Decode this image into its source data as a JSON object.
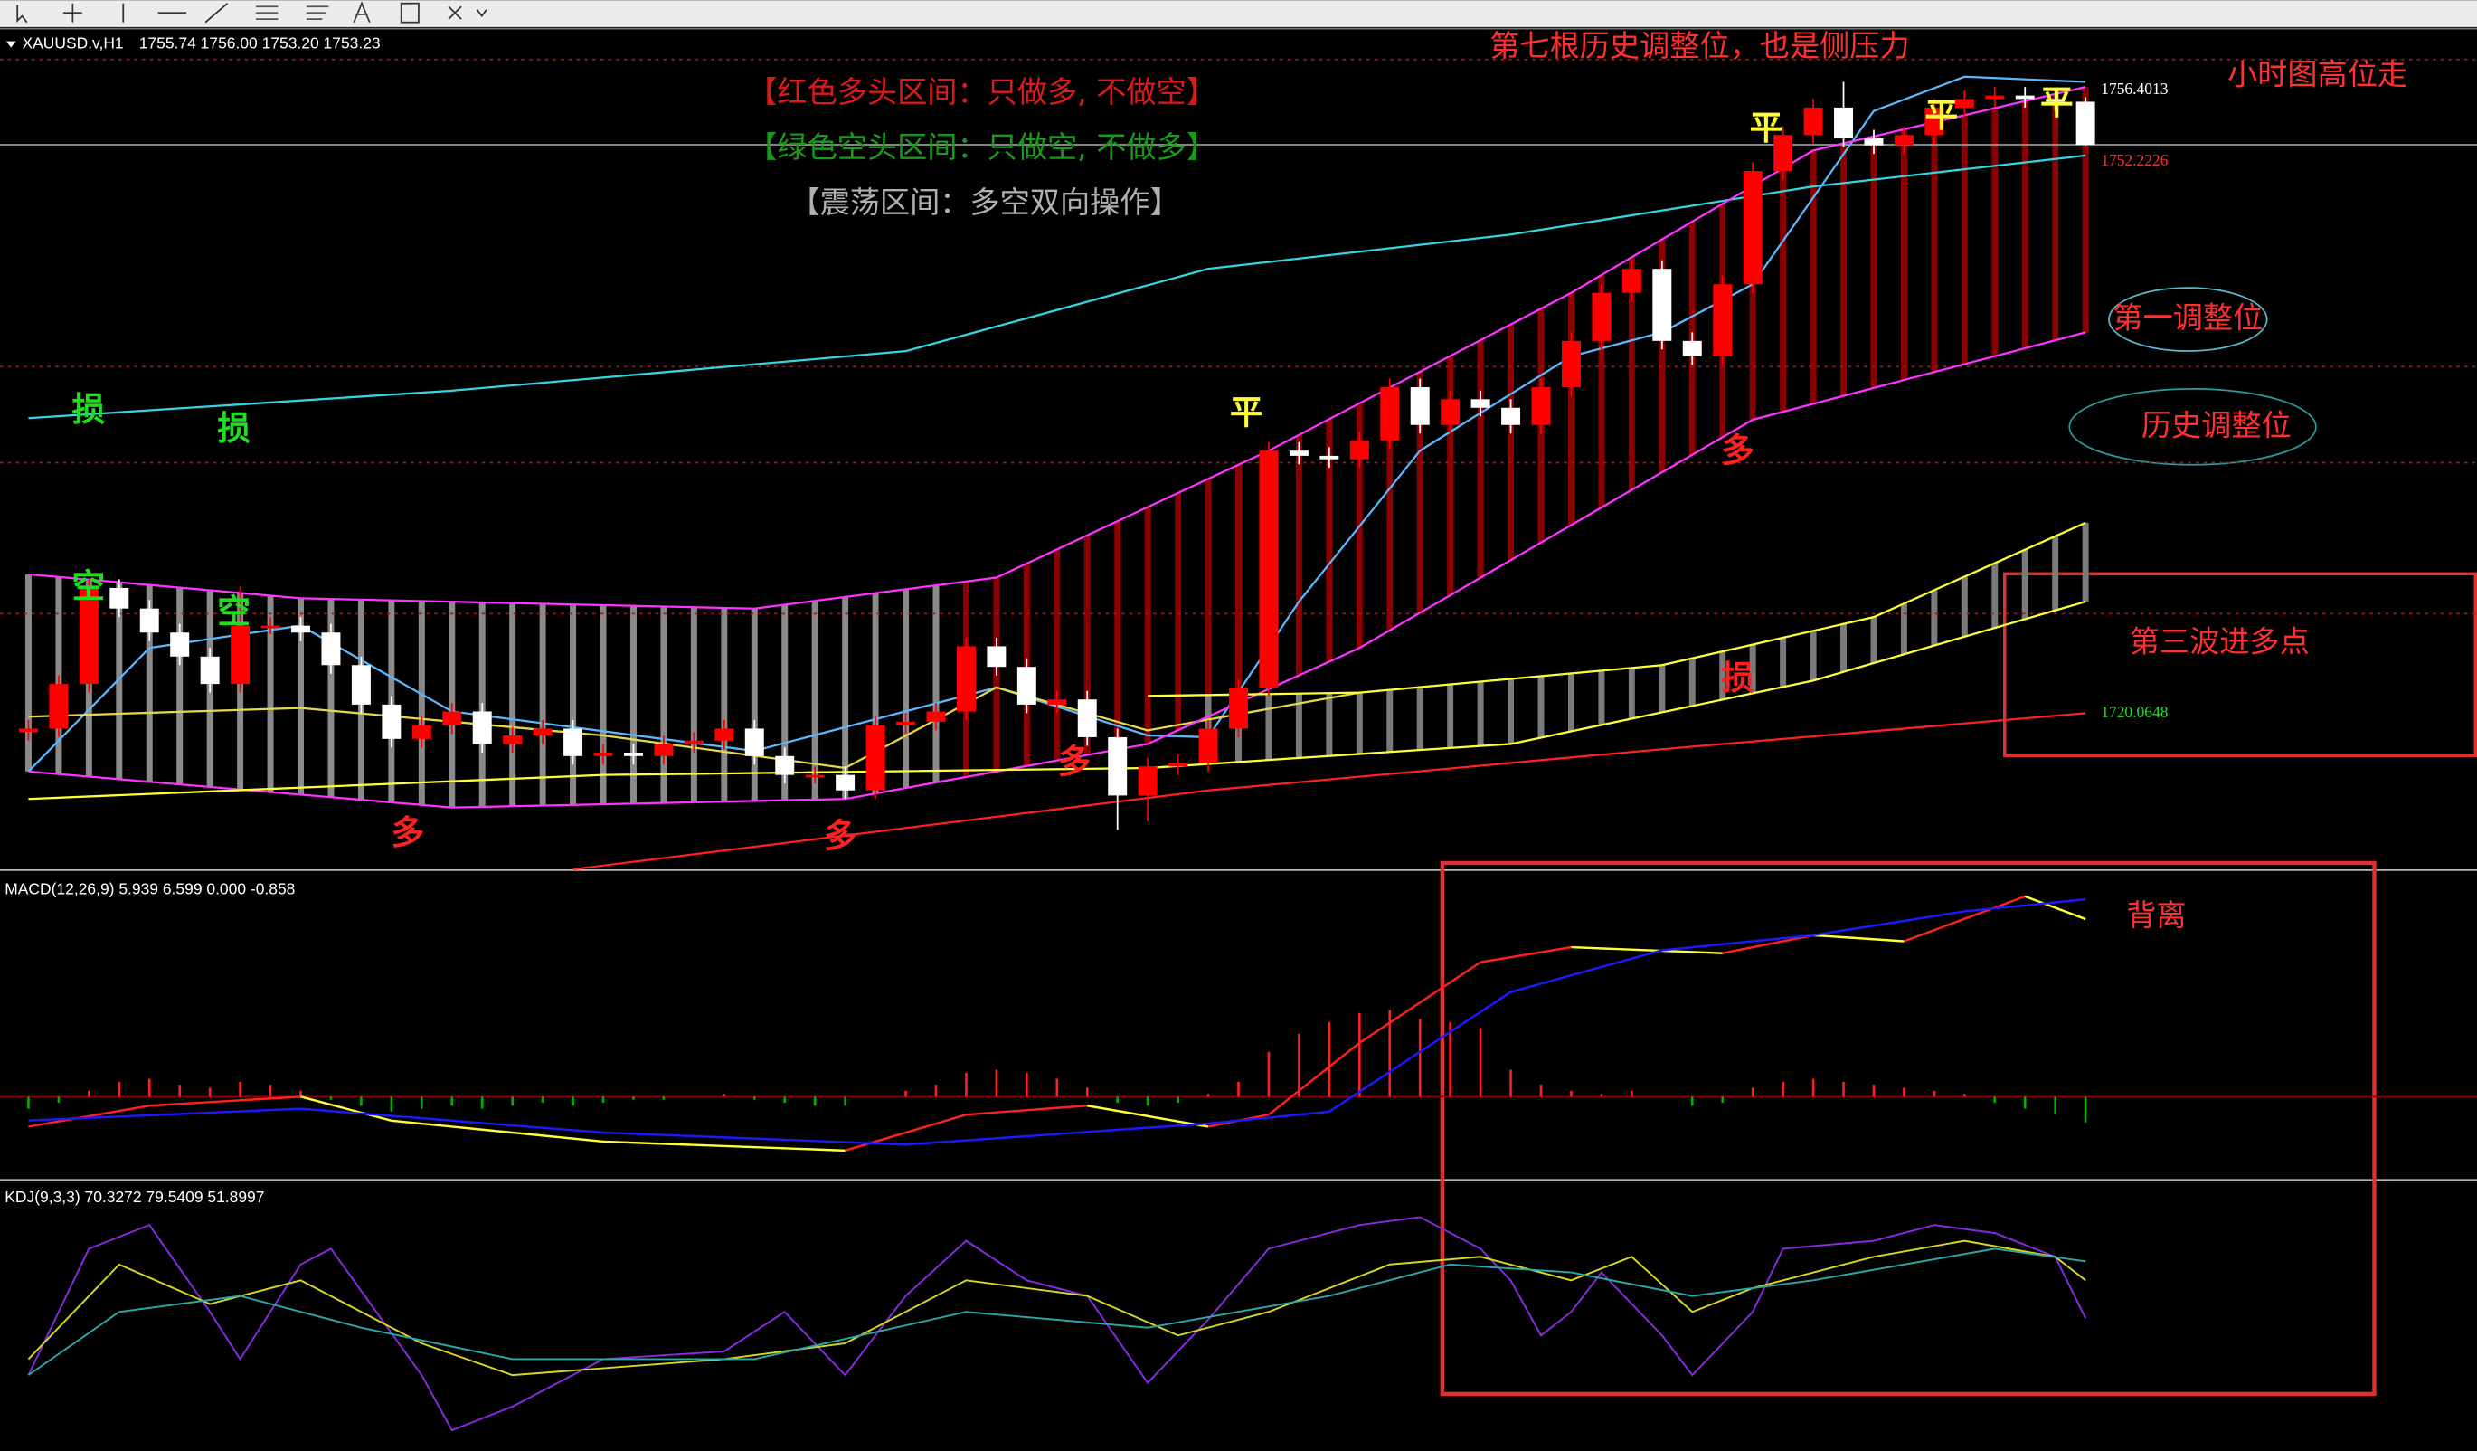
{
  "chart_data": [
    {
      "type": "candlestick",
      "symbol": "XAUUSD.v,H1",
      "quote": "1755.74 1756.00 1753.20 1753.23",
      "ylim": [
        1711,
        1760
      ],
      "up_color": "#ff0000",
      "down_color": "#ffffff",
      "open": [
        1719.0,
        1719.2,
        1721.8,
        1727.4,
        1726.2,
        1724.8,
        1723.4,
        1721.8,
        1725.2,
        1725.2,
        1724.8,
        1722.9,
        1720.6,
        1718.6,
        1719.4,
        1720.2,
        1718.3,
        1718.8,
        1719.2,
        1717.6,
        1717.8,
        1717.6,
        1718.3,
        1718.5,
        1719.2,
        1717.6,
        1716.5,
        1716.5,
        1715.6,
        1719.4,
        1719.6,
        1720.2,
        1724.0,
        1722.8,
        1720.6,
        1720.9,
        1718.7,
        1715.3,
        1717.0,
        1717.2,
        1719.2,
        1721.6,
        1735.4,
        1735.1,
        1734.9,
        1736.0,
        1739.1,
        1736.9,
        1738.4,
        1737.9,
        1736.9,
        1739.1,
        1741.8,
        1744.6,
        1746.0,
        1741.8,
        1740.9,
        1745.1,
        1751.7,
        1753.8,
        1755.4,
        1753.6,
        1753.2,
        1753.8,
        1755.4,
        1755.9,
        1756.1,
        1755.9,
        1755.74
      ],
      "high": [
        1719.7,
        1722.3,
        1727.9,
        1727.9,
        1726.7,
        1725.3,
        1723.9,
        1727.5,
        1725.7,
        1725.7,
        1725.3,
        1723.4,
        1721.1,
        1719.9,
        1720.7,
        1720.7,
        1719.3,
        1719.7,
        1719.7,
        1718.3,
        1718.3,
        1718.8,
        1719.0,
        1719.7,
        1719.7,
        1718.1,
        1717.0,
        1717.0,
        1719.9,
        1720.1,
        1720.7,
        1724.5,
        1724.5,
        1723.3,
        1721.4,
        1721.4,
        1719.2,
        1717.5,
        1717.7,
        1719.7,
        1722.1,
        1735.9,
        1735.9,
        1735.6,
        1736.5,
        1739.6,
        1739.6,
        1738.9,
        1738.9,
        1738.4,
        1739.6,
        1742.3,
        1745.1,
        1746.5,
        1746.5,
        1742.3,
        1745.6,
        1752.2,
        1754.3,
        1755.9,
        1756.9,
        1754.1,
        1754.3,
        1755.9,
        1756.4,
        1756.6,
        1756.6,
        1756.4,
        1756.0
      ],
      "low": [
        1718.5,
        1718.7,
        1721.3,
        1725.7,
        1724.3,
        1722.9,
        1721.3,
        1721.3,
        1724.7,
        1724.3,
        1722.4,
        1720.1,
        1718.1,
        1718.1,
        1718.9,
        1717.8,
        1717.8,
        1718.3,
        1717.1,
        1717.1,
        1717.1,
        1717.1,
        1717.8,
        1718.0,
        1717.1,
        1716.0,
        1716.0,
        1715.1,
        1715.1,
        1718.9,
        1719.1,
        1719.7,
        1722.3,
        1720.1,
        1720.1,
        1718.2,
        1713.3,
        1713.8,
        1716.5,
        1716.7,
        1718.7,
        1721.1,
        1734.6,
        1734.4,
        1734.4,
        1735.5,
        1736.4,
        1736.4,
        1737.4,
        1736.4,
        1736.4,
        1738.6,
        1741.3,
        1744.1,
        1741.3,
        1740.4,
        1740.4,
        1744.6,
        1751.2,
        1753.3,
        1753.1,
        1752.7,
        1752.7,
        1753.3,
        1754.9,
        1755.4,
        1755.4,
        1755.2,
        1753.2
      ],
      "close": [
        1719.2,
        1721.8,
        1727.4,
        1726.2,
        1724.8,
        1723.4,
        1721.8,
        1725.2,
        1725.2,
        1724.8,
        1722.9,
        1720.6,
        1718.6,
        1719.4,
        1720.2,
        1718.3,
        1718.8,
        1719.2,
        1717.6,
        1717.8,
        1717.6,
        1718.3,
        1718.5,
        1719.2,
        1717.6,
        1716.5,
        1716.5,
        1715.6,
        1719.4,
        1719.6,
        1720.2,
        1724.0,
        1722.8,
        1720.6,
        1720.9,
        1718.7,
        1715.3,
        1717.0,
        1717.2,
        1719.2,
        1721.6,
        1735.4,
        1735.1,
        1734.9,
        1736.0,
        1739.1,
        1736.9,
        1738.4,
        1737.9,
        1736.9,
        1739.1,
        1741.8,
        1744.6,
        1746.0,
        1741.8,
        1740.9,
        1745.1,
        1751.7,
        1753.8,
        1755.4,
        1753.6,
        1753.2,
        1753.8,
        1755.4,
        1755.9,
        1756.1,
        1755.9,
        1755.74,
        1753.23
      ],
      "overlays": [
        {
          "color": "#33d6e0",
          "x": [
            1,
            15,
            30,
            40,
            50,
            60,
            69
          ],
          "values": [
            1737.3,
            1738.9,
            1741.2,
            1746.0,
            1748.0,
            1750.8,
            1752.6
          ]
        },
        {
          "color": "#5ab8ff",
          "x": [
            1,
            5,
            10,
            15,
            25,
            33,
            38,
            40,
            43,
            47,
            52,
            55,
            58,
            62,
            65,
            69
          ],
          "values": [
            1716.7,
            1723.9,
            1725.2,
            1720.2,
            1717.9,
            1721.6,
            1718.8,
            1718.7,
            1726.6,
            1735.4,
            1740.9,
            1742.3,
            1745.1,
            1755.2,
            1757.2,
            1756.9
          ]
        },
        {
          "color": "#ff2020",
          "x": [
            19,
            40,
            55,
            69
          ],
          "values": [
            1711.0,
            1715.6,
            1718.0,
            1720.1
          ]
        },
        {
          "color": "#e6d84a",
          "x": [
            1,
            10,
            20,
            28,
            33,
            38,
            45
          ],
          "values": [
            1719.9,
            1720.4,
            1718.8,
            1716.9,
            1721.6,
            1719.1,
            1721.3
          ]
        },
        {
          "color": "#ff33ff",
          "x": [
            1,
            10,
            25,
            33,
            42,
            52,
            60,
            69
          ],
          "values": [
            1728.2,
            1726.8,
            1726.2,
            1728.0,
            1735.4,
            1744.6,
            1752.9,
            1756.6
          ]
        },
        {
          "color": "#ff33ff",
          "x": [
            1,
            15,
            28,
            38,
            45,
            58,
            69
          ],
          "values": [
            1716.7,
            1714.6,
            1715.1,
            1718.3,
            1723.9,
            1737.2,
            1742.3
          ]
        },
        {
          "color": "#ffff33",
          "x": [
            38,
            45,
            55,
            62,
            69
          ],
          "values": [
            1721.1,
            1721.3,
            1722.9,
            1725.7,
            1731.2
          ]
        },
        {
          "color": "#ffff33",
          "x": [
            1,
            20,
            38,
            50,
            60,
            69
          ],
          "values": [
            1715.1,
            1716.5,
            1716.9,
            1718.3,
            1722.0,
            1726.6
          ]
        }
      ],
      "levels": [
        1758.2,
        1740.3,
        1734.7,
        1725.9
      ],
      "level_color": "#a01818",
      "price_labels": [
        1756.4013,
        1752.2226,
        1720.0648
      ],
      "price_label_colors": [
        "#ffffff",
        "#ff3030",
        "#22dd22"
      ],
      "annotations": [
        {
          "text": "第七根历史调整位，也是侧压力",
          "color": "#ff3030"
        },
        {
          "text": "小时图高位走",
          "color": "#ff3030"
        },
        {
          "text": "【红色多头区间：只做多, 不做空】",
          "color": "#dd1a1a"
        },
        {
          "text": "【绿色空头区间：只做空, 不做多】",
          "color": "#1a9a1a"
        },
        {
          "text": "【震荡区间：多空双向操作】",
          "color": "#b0b0b0"
        },
        {
          "text": "第一调整位",
          "color": "#ff3030"
        },
        {
          "text": "历史调整位",
          "color": "#ff3030"
        },
        {
          "text": "第三波进多点",
          "color": "#ff3030"
        },
        {
          "text": "背离",
          "color": "#ff3030"
        }
      ],
      "markers": [
        {
          "text": "损",
          "color": "#22dd22"
        },
        {
          "text": "损",
          "color": "#22dd22"
        },
        {
          "text": "空",
          "color": "#22dd22"
        },
        {
          "text": "空",
          "color": "#22dd22"
        },
        {
          "text": "多",
          "color": "#ff2020"
        },
        {
          "text": "多",
          "color": "#ff2020"
        },
        {
          "text": "多",
          "color": "#ff2020"
        },
        {
          "text": "多",
          "color": "#ff2020"
        },
        {
          "text": "损",
          "color": "#ff2020"
        },
        {
          "text": "平",
          "color": "#ffff33"
        },
        {
          "text": "平",
          "color": "#ffff33"
        },
        {
          "text": "平",
          "color": "#ffff33"
        },
        {
          "text": "平",
          "color": "#ffff33"
        }
      ]
    },
    {
      "type": "macd",
      "title": "MACD(12,26,9) 5.939 6.599 0.000 -0.858",
      "ylim": [
        -2.7,
        7.5
      ],
      "up_color": "#ff2020",
      "down_color": "#00b000",
      "zero_color": "#8b0000",
      "values": [
        -0.4,
        -0.2,
        0.2,
        0.5,
        0.6,
        0.4,
        0.3,
        0.5,
        0.4,
        0.2,
        -0.1,
        -0.3,
        -0.5,
        -0.4,
        -0.3,
        -0.4,
        -0.3,
        -0.2,
        -0.3,
        -0.2,
        -0.1,
        -0.1,
        0.0,
        0.1,
        -0.1,
        -0.2,
        -0.3,
        -0.3,
        0.0,
        0.2,
        0.4,
        0.8,
        0.9,
        0.8,
        0.6,
        0.3,
        -0.2,
        -0.3,
        -0.2,
        0.1,
        0.5,
        1.5,
        2.1,
        2.5,
        2.8,
        2.9,
        2.6,
        2.5,
        2.3,
        0.9,
        0.4,
        0.2,
        0.1,
        0.2,
        0.0,
        -0.3,
        -0.2,
        0.3,
        0.5,
        0.6,
        0.5,
        0.4,
        0.3,
        0.2,
        0.1,
        -0.2,
        -0.4,
        -0.6,
        -0.858
      ],
      "series": [
        {
          "color": "#ff2020",
          "down_color": "#ffff33",
          "x": [
            1,
            5,
            10,
            13,
            20,
            28,
            32,
            36,
            40,
            42,
            45,
            49,
            52,
            57,
            60,
            63,
            67,
            69
          ],
          "values": [
            -1.0,
            -0.3,
            0.0,
            -0.8,
            -1.5,
            -1.8,
            -0.6,
            -0.3,
            -1.0,
            -0.6,
            1.8,
            4.5,
            5.0,
            4.8,
            5.4,
            5.2,
            6.7,
            5.939
          ]
        },
        {
          "color": "#1a1aff",
          "x": [
            1,
            10,
            20,
            30,
            40,
            44,
            47,
            50,
            55,
            60,
            65,
            69
          ],
          "values": [
            -0.8,
            -0.4,
            -1.2,
            -1.6,
            -0.9,
            -0.5,
            1.5,
            3.5,
            4.9,
            5.4,
            6.2,
            6.599
          ]
        }
      ]
    },
    {
      "type": "line",
      "title": "KDJ(9,3,3) 70.3272 79.5409 51.8997",
      "ylim": [
        -12.5,
        118
      ],
      "series": [
        {
          "color": "#8a2be2",
          "x": [
            1,
            3,
            5,
            7,
            8,
            10,
            11,
            14,
            15,
            17,
            20,
            24,
            26,
            28,
            30,
            32,
            34,
            36,
            38,
            40,
            42,
            45,
            47,
            49,
            50,
            51,
            52,
            53,
            55,
            56,
            58,
            59,
            62,
            64,
            66,
            68,
            69
          ],
          "values": [
            24.3,
            85.7,
            97.2,
            55,
            32,
            78,
            85.7,
            24.3,
            -2.5,
            9,
            32,
            35.8,
            55,
            24.3,
            62.7,
            89.5,
            70.3,
            62.7,
            20.5,
            51.2,
            85.7,
            97.2,
            101,
            85.7,
            70.3,
            43.5,
            55,
            74.2,
            43.5,
            24.3,
            55,
            85.7,
            89.5,
            97.2,
            93.3,
            81.8,
            51.8997
          ]
        },
        {
          "color": "#d8d820",
          "x": [
            1,
            4,
            7,
            10,
            14,
            17,
            24,
            28,
            32,
            36,
            39,
            42,
            46,
            49,
            52,
            54,
            56,
            58,
            62,
            65,
            68,
            69
          ],
          "values": [
            32,
            78,
            58.8,
            70.3,
            39.7,
            24.3,
            32,
            39.7,
            70.3,
            62.7,
            43.5,
            55,
            78,
            81.8,
            70.3,
            81.8,
            55,
            66.5,
            81.8,
            89.5,
            81.8,
            70.3272
          ]
        },
        {
          "color": "#2aa8a8",
          "x": [
            1,
            4,
            8,
            12,
            17,
            25,
            32,
            38,
            44,
            48,
            52,
            56,
            60,
            66,
            69
          ],
          "values": [
            24.3,
            55,
            62.7,
            47.3,
            32,
            32,
            55,
            47.3,
            62.7,
            78,
            74.2,
            62.7,
            70.3,
            85.7,
            79.5409
          ]
        }
      ]
    }
  ]
}
